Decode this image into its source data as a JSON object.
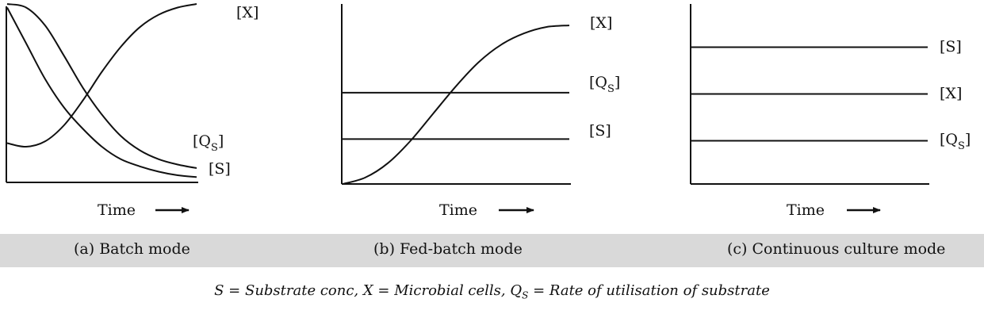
{
  "time_label": "Time",
  "captions": [
    "(a) Batch mode",
    "(b) Fed-batch mode",
    "(c) Continuous culture mode"
  ],
  "legend": {
    "text_before": "S = Substrate conc, X = Microbial cells, Q",
    "sub": "S",
    "text_after": " = Rate of utilisation of substrate"
  },
  "chart_data": [
    {
      "type": "line",
      "title": "(a) Batch mode",
      "xlabel": "Time",
      "ylabel": "",
      "x": [
        0,
        1,
        2,
        3,
        4,
        5,
        6,
        7,
        8,
        9,
        10
      ],
      "xlim": [
        0,
        10
      ],
      "ylim": [
        0,
        1
      ],
      "series": [
        {
          "name": "[X]",
          "values": [
            0.22,
            0.2,
            0.23,
            0.32,
            0.46,
            0.62,
            0.76,
            0.87,
            0.94,
            0.98,
            1.0
          ]
        },
        {
          "name": "[Qs]",
          "values": [
            1.0,
            0.98,
            0.88,
            0.71,
            0.53,
            0.38,
            0.26,
            0.18,
            0.13,
            0.1,
            0.08
          ]
        },
        {
          "name": "[S]",
          "values": [
            0.98,
            0.78,
            0.58,
            0.42,
            0.3,
            0.2,
            0.13,
            0.09,
            0.06,
            0.04,
            0.03
          ]
        }
      ]
    },
    {
      "type": "line",
      "title": "(b) Fed-batch mode",
      "xlabel": "Time",
      "ylabel": "",
      "x": [
        0,
        1,
        2,
        3,
        4,
        5,
        6,
        7,
        8,
        9,
        10
      ],
      "xlim": [
        0,
        10
      ],
      "ylim": [
        0,
        1
      ],
      "series": [
        {
          "name": "[X]",
          "values": [
            0.0,
            0.04,
            0.13,
            0.27,
            0.44,
            0.61,
            0.76,
            0.87,
            0.94,
            0.98,
            0.99
          ]
        },
        {
          "name": "[Qs]",
          "values": [
            0.57,
            0.57,
            0.57,
            0.57,
            0.57,
            0.57,
            0.57,
            0.57,
            0.57,
            0.57,
            0.57
          ]
        },
        {
          "name": "[S]",
          "values": [
            0.28,
            0.28,
            0.28,
            0.28,
            0.28,
            0.28,
            0.28,
            0.28,
            0.28,
            0.28,
            0.28
          ]
        }
      ]
    },
    {
      "type": "line",
      "title": "(c) Continuous culture mode",
      "xlabel": "Time",
      "ylabel": "",
      "x": [
        0,
        10
      ],
      "xlim": [
        0,
        10
      ],
      "ylim": [
        0,
        1
      ],
      "series": [
        {
          "name": "[S]",
          "values": [
            0.76,
            0.76
          ]
        },
        {
          "name": "[X]",
          "values": [
            0.5,
            0.5
          ]
        },
        {
          "name": "[Qs]",
          "values": [
            0.24,
            0.24
          ]
        }
      ]
    }
  ]
}
